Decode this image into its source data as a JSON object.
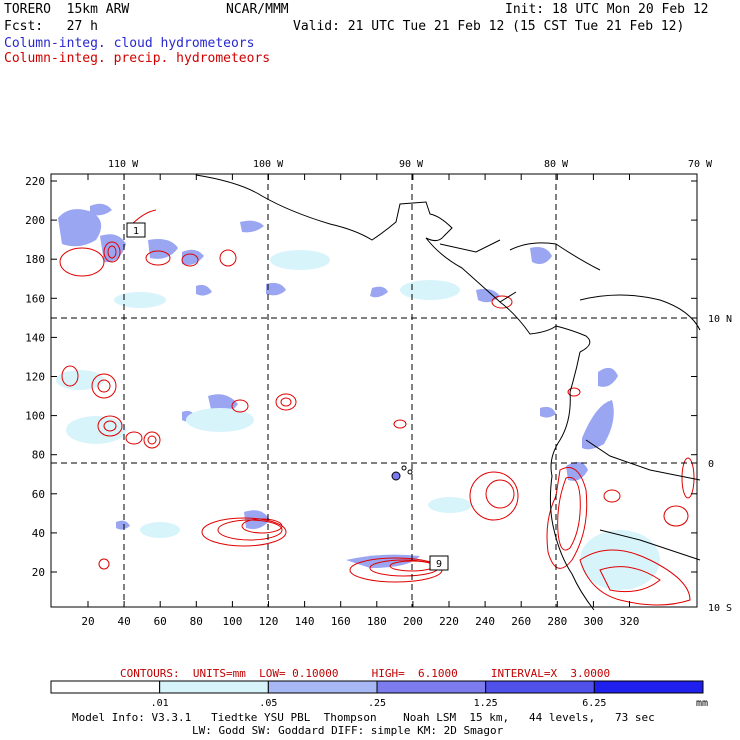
{
  "header": {
    "model": "TORERO  15km ARW",
    "org": "NCAR/MMM",
    "init": "Init: 18 UTC Mon 20 Feb 12",
    "fcst": "Fcst:   27 h",
    "valid": "Valid: 21 UTC Tue 21 Feb 12 (15 CST Tue 21 Feb 12)",
    "legend_blue": "Column-integ. cloud hydrometeors",
    "legend_red": "Column-integ. precip. hydrometeors"
  },
  "map": {
    "lon_labels": [
      "110 W",
      "100 W",
      "90 W",
      "80 W",
      "70 W"
    ],
    "lat_labels": [
      "10 N",
      "0",
      "10 S"
    ],
    "x_ticks": [
      "20",
      "40",
      "60",
      "80",
      "100",
      "120",
      "140",
      "160",
      "180",
      "200",
      "220",
      "240",
      "260",
      "280",
      "300",
      "320"
    ],
    "y_ticks": [
      "220",
      "200",
      "180",
      "160",
      "140",
      "120",
      "100",
      "80",
      "60",
      "40",
      "20"
    ],
    "storm_boxes": [
      "1",
      "9"
    ]
  },
  "contours": "CONTOURS:  UNITS=mm  LOW= 0.10000     HIGH=  6.1000     INTERVAL=X  3.0000",
  "colorbar": {
    "labels": [
      ".01",
      ".05",
      ".25",
      "1.25",
      "6.25"
    ],
    "unit": "mm",
    "colors": [
      "#ffffff",
      "#d8f4fb",
      "#a8b8f4",
      "#7c7cee",
      "#5050ea",
      "#2020ee"
    ]
  },
  "model_info": {
    "line1": "Model Info: V3.3.1   Tiedtke YSU PBL  Thompson    Noah LSM  15 km,   44 levels,   73 sec",
    "line2": "LW: Godd SW: Goddard DIFF: simple KM: 2D Smagor"
  },
  "colors": {
    "cloud": "#7a7aee",
    "precip": "#e00000",
    "grid": "#000000"
  }
}
